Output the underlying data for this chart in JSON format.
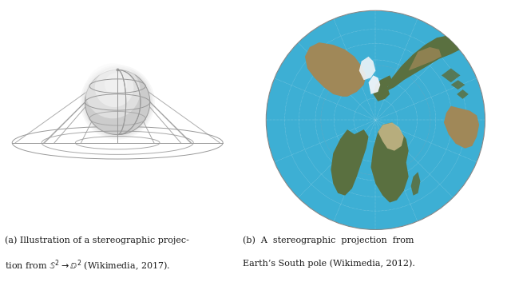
{
  "fig_width": 6.4,
  "fig_height": 3.58,
  "dpi": 100,
  "bg_color": "#ffffff",
  "caption_a_line1": "(a) Illustration of a stereographic projec-",
  "caption_a_line2": "tion from $\\mathbb{S}^2 \\rightarrow \\mathbb{D}^2$ (Wikimedia, 2017).",
  "caption_b_line1": "(b)  A  stereographic  projection  from",
  "caption_b_line2": "Earth’s South pole (Wikimedia, 2012).",
  "caption_fontsize": 8.0,
  "caption_color": "#1a1a1a",
  "line_color": "#999999",
  "line_width": 0.7,
  "map_ocean": "#3dafd4",
  "map_land_green": "#5a7040",
  "map_land_brown": "#a08858",
  "map_sand": "#c8b888",
  "map_ice": "#f0f4f8",
  "map_grid_white": "#c8e8f0",
  "map_grid_red": "#cc8888",
  "sphere_outer_glow": "#e8e8e8",
  "sphere_mid": "#d8d8d8",
  "sphere_inner": "#f0f0f0"
}
